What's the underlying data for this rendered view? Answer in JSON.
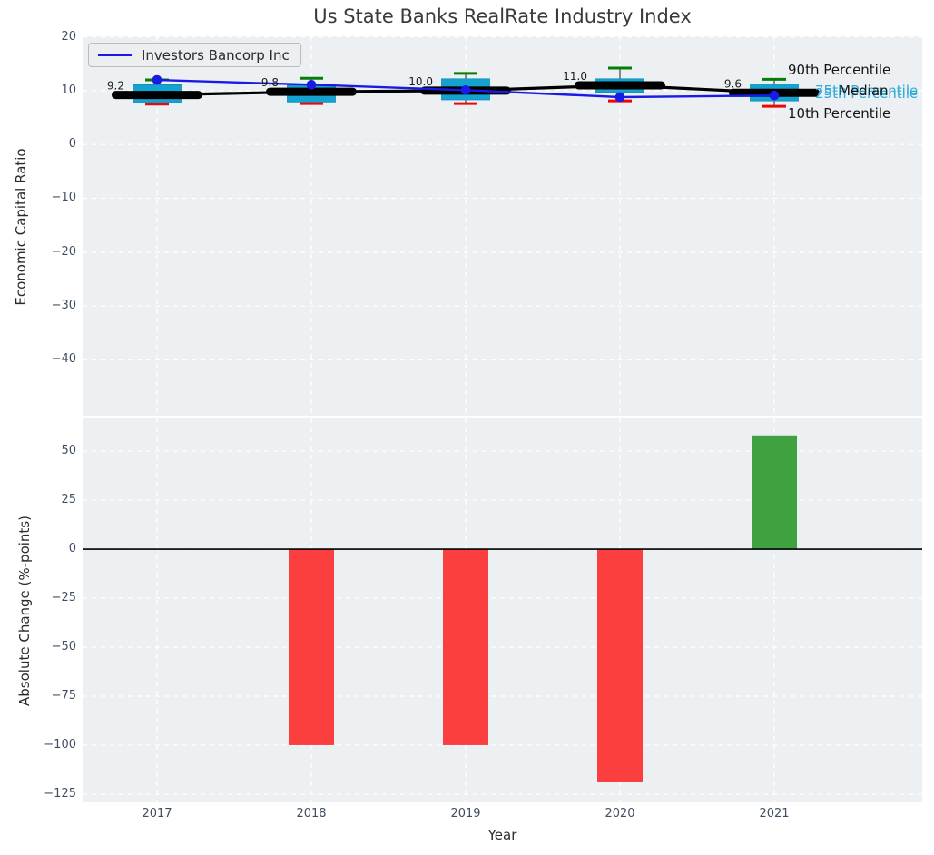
{
  "title": "Us State Banks RealRate Industry Index",
  "legend": {
    "label": "Investors Bancorp Inc"
  },
  "colors": {
    "panel_bg": "#edf0f2",
    "grid": "#ffffff",
    "box_fill": "#14a3d1",
    "box_edge": "#0e8cb8",
    "median_color": "#000000",
    "company_color": "#1a1ae6",
    "p90_cap": "#067d06",
    "p10_cap": "#ee0707",
    "whisker": "#444444",
    "bar_negative": "#fb3e3e",
    "bar_positive": "#3fa140",
    "tick_text": "#3f4e63",
    "annotation_text": "#1a1a1a",
    "percentile_cyan_text": "#2fabd9"
  },
  "chart_data": [
    {
      "type": "boxplot+line",
      "title": "Us State Banks RealRate Industry Index",
      "xlabel": "Year",
      "ylabel": "Economic Capital Ratio",
      "categories": [
        "2017",
        "2018",
        "2019",
        "2020",
        "2021"
      ],
      "yticks": [
        20,
        10,
        0,
        -10,
        -20,
        -30,
        -40
      ],
      "ylim": [
        -50.4,
        20.1
      ],
      "grid": "white dashed",
      "legend_position": "upper left",
      "legend_entries": [
        "Investors Bancorp Inc"
      ],
      "series": [
        {
          "name": "Median",
          "values": [
            9.2,
            9.8,
            10.0,
            11.0,
            9.6
          ]
        },
        {
          "name": "75th Percentile",
          "values": [
            11.1,
            11.0,
            12.2,
            12.2,
            11.2
          ]
        },
        {
          "name": "25th Percentile",
          "values": [
            7.8,
            7.9,
            8.3,
            9.7,
            8.1
          ]
        },
        {
          "name": "90th Percentile",
          "values": [
            12.0,
            12.3,
            13.2,
            14.2,
            12.1
          ]
        },
        {
          "name": "10th Percentile",
          "values": [
            7.5,
            7.6,
            7.6,
            8.1,
            7.1
          ]
        },
        {
          "name": "Investors Bancorp Inc",
          "values": [
            12.0,
            11.1,
            10.1,
            8.8,
            9.1
          ]
        }
      ],
      "annotations": {
        "median_labels": [
          "9.2",
          "9.8",
          "10.0",
          "11.0",
          "9.6"
        ],
        "right_labels": {
          "p90": "90th Percentile",
          "p75": "75th Percentile",
          "median": "Median",
          "p25": "25th Percentile",
          "p10": "10th Percentile"
        }
      }
    },
    {
      "type": "bar",
      "xlabel": "Year",
      "ylabel": "Absolute Change (%-points)",
      "categories": [
        "2017",
        "2018",
        "2019",
        "2020",
        "2021"
      ],
      "values": [
        0,
        -100,
        -100,
        -119,
        58
      ],
      "yticks": [
        50,
        25,
        0,
        -25,
        -50,
        -75,
        -100,
        -125
      ],
      "ylim": [
        -129.2,
        66.7
      ],
      "grid": "white dashed",
      "zero_line": true
    }
  ]
}
